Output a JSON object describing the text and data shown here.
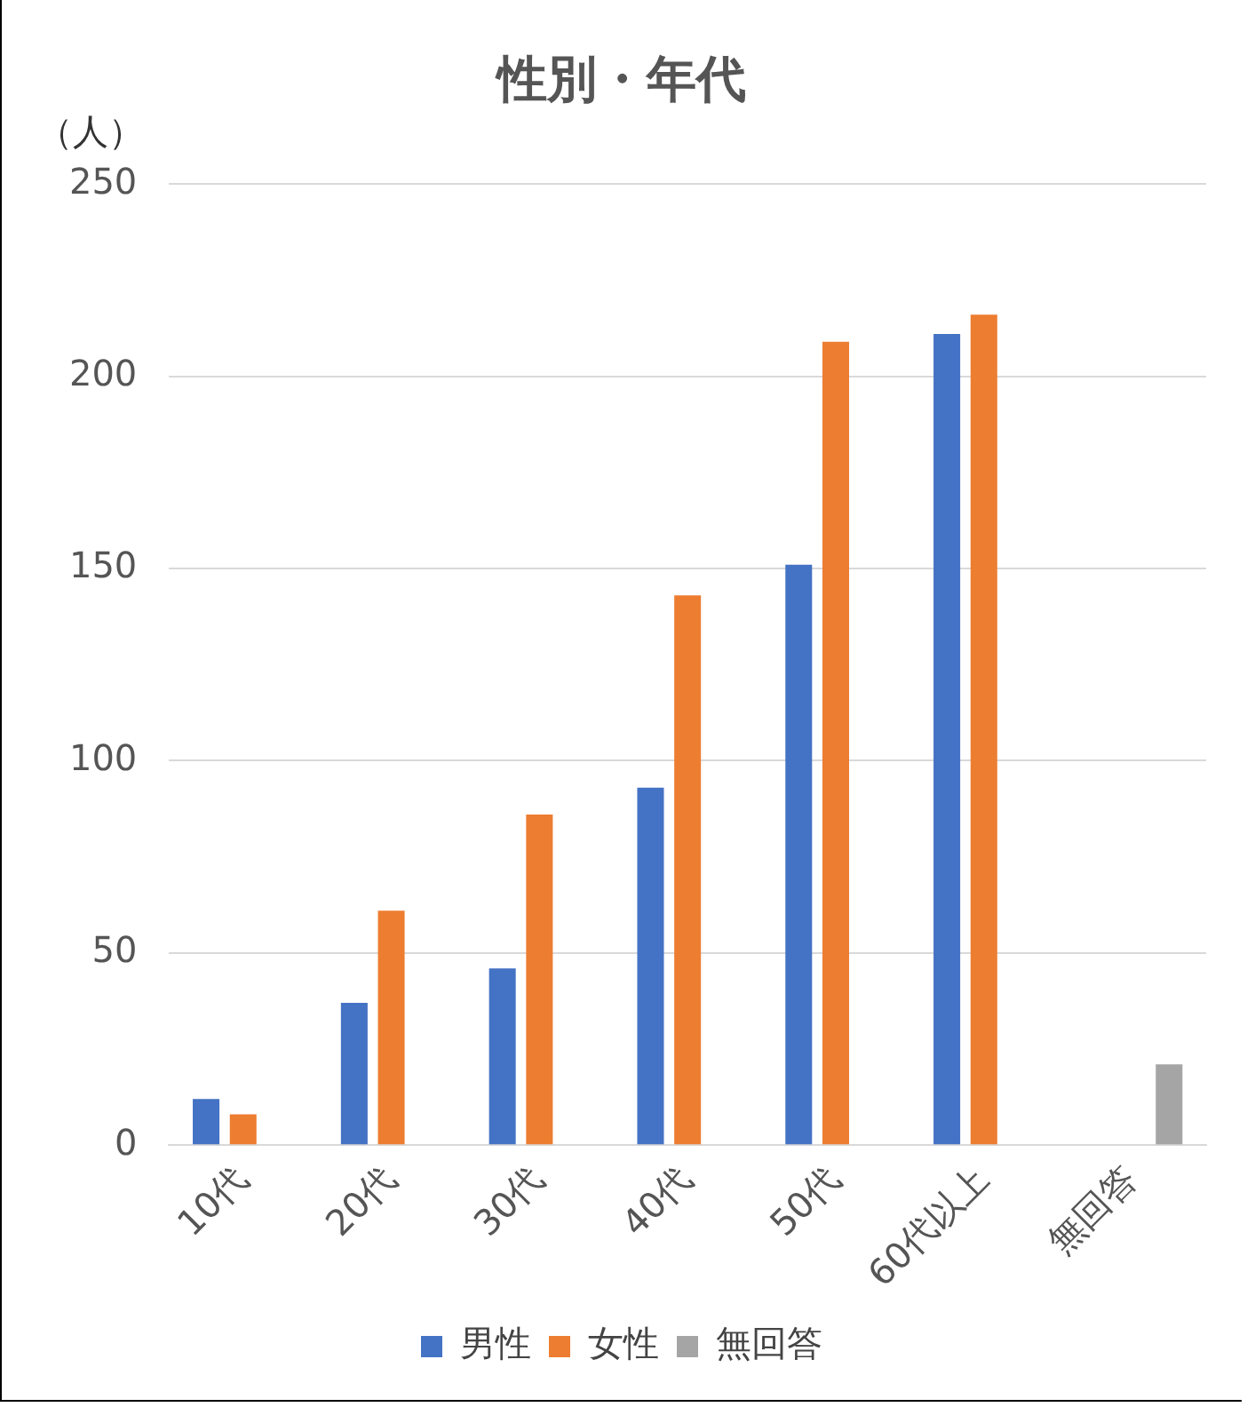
{
  "chart_data": {
    "type": "bar",
    "title": "性別・年代",
    "ylabel": "（人）",
    "categories": [
      "10代",
      "20代",
      "30代",
      "40代",
      "50代",
      "60代以上",
      "無回答"
    ],
    "series": [
      {
        "name": "男性",
        "color": "#4472c4",
        "values": [
          12,
          37,
          46,
          93,
          151,
          211,
          null
        ]
      },
      {
        "name": "女性",
        "color": "#ed7d31",
        "values": [
          8,
          61,
          86,
          143,
          209,
          216,
          null
        ]
      },
      {
        "name": "無回答",
        "color": "#a5a5a5",
        "values": [
          null,
          null,
          null,
          null,
          null,
          null,
          21
        ]
      }
    ],
    "ylim": [
      0,
      250
    ],
    "yticks": [
      0,
      50,
      100,
      150,
      200,
      250
    ],
    "grid": "y",
    "legend": "bottom"
  }
}
